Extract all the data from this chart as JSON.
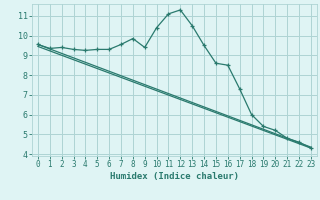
{
  "line1_x": [
    0,
    1,
    2,
    3,
    4,
    5,
    6,
    7,
    8,
    9,
    10,
    11,
    12,
    13,
    14,
    15,
    16,
    17,
    18,
    19,
    20,
    21,
    22,
    23
  ],
  "line1_y": [
    9.55,
    9.35,
    9.4,
    9.3,
    9.25,
    9.3,
    9.3,
    9.55,
    9.85,
    9.4,
    10.4,
    11.1,
    11.3,
    10.5,
    9.5,
    8.6,
    8.5,
    7.3,
    6.0,
    5.4,
    5.2,
    4.8,
    4.6,
    4.3
  ],
  "line2_x": [
    0,
    23
  ],
  "line2_y": [
    9.55,
    4.35
  ],
  "line3_x": [
    0,
    23
  ],
  "line3_y": [
    9.45,
    4.3
  ],
  "color": "#2a7a6e",
  "bg_color": "#dff4f4",
  "grid_color": "#aed4d4",
  "xlabel": "Humidex (Indice chaleur)",
  "xlim": [
    -0.5,
    23.5
  ],
  "ylim": [
    3.9,
    11.6
  ],
  "yticks": [
    4,
    5,
    6,
    7,
    8,
    9,
    10,
    11
  ],
  "xticks": [
    0,
    1,
    2,
    3,
    4,
    5,
    6,
    7,
    8,
    9,
    10,
    11,
    12,
    13,
    14,
    15,
    16,
    17,
    18,
    19,
    20,
    21,
    22,
    23
  ],
  "tick_color": "#2a7a6e",
  "label_color": "#2a7a6e"
}
